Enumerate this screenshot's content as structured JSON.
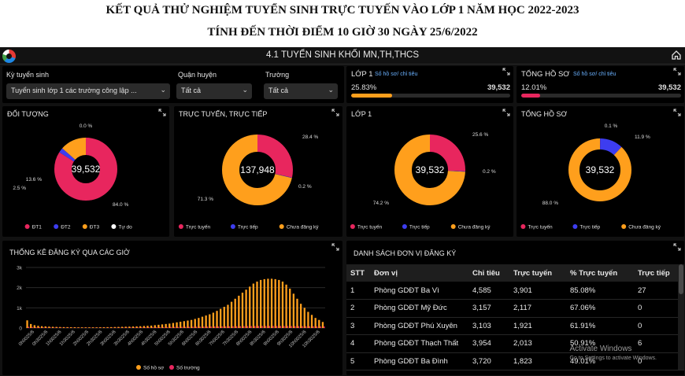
{
  "header": {
    "line1": "KẾT QUẢ THỬ NGHIỆM TUYỂN SINH TRỰC TUYẾN VÀO LỚP 1 NĂM HỌC 2022-2023",
    "line2": "TÍNH ĐẾN THỜI ĐIỂM 10 GIỜ 30 NGÀY 25/6/2022"
  },
  "app": {
    "title": "4.1 TUYỂN SINH KHỐI MN,TH,THCS"
  },
  "filters": {
    "ky_label": "Kỳ tuyển sinh",
    "ky_value": "Tuyển sinh lớp 1 các trường công lập ...",
    "quan_label": "Quận huyện",
    "quan_value": "Tất cả",
    "truong_label": "Trường",
    "truong_value": "Tất cả"
  },
  "kpi": {
    "lop1": {
      "title": "LỚP 1",
      "sub": "Số hồ sơ/ chỉ tiêu",
      "pct": "25.83%",
      "total": "39,532",
      "fill": 25.83
    },
    "tonghoso": {
      "title": "TỔNG HỒ SƠ",
      "sub": "Số hồ sơ/ chỉ tiêu",
      "pct": "12.01%",
      "bar_text": "12.01%",
      "total": "39,532",
      "fill": 12.01
    }
  },
  "colors": {
    "pink": "#e8265e",
    "orange": "#ff9f1c",
    "blue": "#3d3df0",
    "white": "#ffffff"
  },
  "donuts": [
    {
      "key": "doituong",
      "title": "ĐỐI TƯỢNG",
      "center": "39,532",
      "slices": [
        {
          "name": "ĐT1",
          "value": 84.0,
          "color": "#e8265e",
          "label": "84.0 %"
        },
        {
          "name": "ĐT2",
          "value": 2.5,
          "color": "#3d3df0",
          "label": "2.5 %"
        },
        {
          "name": "ĐT3",
          "value": 13.6,
          "color": "#ff9f1c",
          "label": "13.6 %"
        },
        {
          "name": "Tự do",
          "value": 0.0,
          "color": "#ffffff",
          "label": "0.0 %"
        }
      ],
      "legend": [
        "ĐT1",
        "ĐT2",
        "ĐT3",
        "Tự do"
      ]
    },
    {
      "key": "tructuyen",
      "title": "TRỰC TUYẾN, TRỰC TIẾP",
      "center": "137,948",
      "slices": [
        {
          "name": "Trực tuyến",
          "value": 28.4,
          "color": "#e8265e",
          "label": "28.4 %"
        },
        {
          "name": "Trực tiếp",
          "value": 0.2,
          "color": "#3d3df0",
          "label": "0.2 %"
        },
        {
          "name": "Chưa đăng ký",
          "value": 71.3,
          "color": "#ff9f1c",
          "label": "71.3 %"
        }
      ],
      "legend": [
        "Trực tuyến",
        "Trực tiếp",
        "Chưa đăng ký"
      ]
    },
    {
      "key": "lop1",
      "title": "LỚP 1",
      "center": "39,532",
      "slices": [
        {
          "name": "Trực tuyến",
          "value": 25.6,
          "color": "#e8265e",
          "label": "25.6 %"
        },
        {
          "name": "Trực tiếp",
          "value": 0.2,
          "color": "#3d3df0",
          "label": "0.2 %"
        },
        {
          "name": "Chưa đăng ký",
          "value": 74.2,
          "color": "#ff9f1c",
          "label": "74.2 %"
        }
      ],
      "legend": [
        "Trực tuyến",
        "Trực tiếp",
        "Chưa đăng ký"
      ]
    },
    {
      "key": "tonghoso",
      "title": "TỔNG HỒ SƠ",
      "center": "39,532",
      "slices": [
        {
          "name": "Trực tuyến",
          "value": 0.1,
          "color": "#e8265e",
          "label": "0.1 %"
        },
        {
          "name": "Trực tiếp",
          "value": 11.9,
          "color": "#3d3df0",
          "label": "11.9 %"
        },
        {
          "name": "Chưa đăng ký",
          "value": 88.0,
          "color": "#ff9f1c",
          "label": "88.0 %"
        }
      ],
      "legend": [
        "Trực tuyến",
        "Trực tiếp",
        "Chưa đăng ký"
      ]
    }
  ],
  "chart_data": {
    "type": "bar",
    "title": "THỐNG KÊ ĐĂNG KÝ QUA CÁC GIỜ",
    "ylim": [
      0,
      3000
    ],
    "yticks": [
      "3k",
      "2k",
      "1k",
      "0"
    ],
    "tick_labels": [
      "0h0025/6",
      "0h3025/6",
      "1h0025/6",
      "1h3025/6",
      "2h0025/6",
      "2h3025/6",
      "3h0025/6",
      "3h3025/6",
      "4h0025/6",
      "4h3025/6",
      "5h0025/6",
      "5h3025/6",
      "6h0025/6",
      "6h3025/6",
      "7h0025/6",
      "7h3025/6",
      "8h0025/6",
      "8h3025/6",
      "9h0025/6",
      "9h3025/6",
      "10h0025/6",
      "10h3025/6"
    ],
    "series": [
      {
        "name": "Số hồ sơ",
        "color": "#ff9f1c",
        "values": [
          380,
          200,
          140,
          110,
          90,
          80,
          70,
          60,
          55,
          50,
          45,
          45,
          40,
          40,
          35,
          35,
          35,
          35,
          35,
          35,
          40,
          40,
          45,
          45,
          50,
          55,
          60,
          65,
          70,
          75,
          80,
          90,
          100,
          110,
          120,
          140,
          160,
          180,
          200,
          220,
          250,
          280,
          310,
          340,
          370,
          400,
          450,
          500,
          560,
          620,
          680,
          760,
          850,
          950,
          1050,
          1150,
          1300,
          1450,
          1600,
          1750,
          1900,
          2050,
          2200,
          2300,
          2380,
          2420,
          2440,
          2440,
          2420,
          2380,
          2300,
          2150,
          1950,
          1700,
          1450,
          1200,
          1000,
          800,
          650,
          500,
          400,
          300
        ]
      },
      {
        "name": "Số trường",
        "color": "#e8265e",
        "values": [
          60,
          50,
          45,
          40,
          35,
          30,
          28,
          26,
          24,
          22,
          20,
          20,
          18,
          18,
          16,
          16,
          16,
          16,
          16,
          16,
          18,
          18,
          20,
          20,
          22,
          24,
          26,
          28,
          30,
          32,
          34,
          36,
          38,
          40,
          42,
          44,
          46,
          48,
          50,
          52,
          54,
          56,
          58,
          60,
          62,
          64,
          66,
          68,
          70,
          72,
          74,
          76,
          78,
          80,
          82,
          84,
          86,
          88,
          90,
          92,
          94,
          96,
          98,
          100,
          100,
          100,
          100,
          100,
          100,
          100,
          100,
          98,
          96,
          94,
          92,
          90,
          88,
          86,
          84,
          82,
          80,
          78
        ]
      }
    ],
    "legend": [
      "Số hồ sơ",
      "Số trường"
    ]
  },
  "table": {
    "title": "DANH SÁCH ĐƠN VỊ ĐĂNG KÝ",
    "headers": [
      "STT",
      "Đơn vị",
      "Chỉ tiêu",
      "Trực tuyến",
      "% Trực tuyến",
      "Trực tiếp"
    ],
    "rows": [
      [
        "1",
        "Phòng GDĐT Ba Vì",
        "4,585",
        "3,901",
        "85.08%",
        "27"
      ],
      [
        "2",
        "Phòng GDĐT Mỹ Đức",
        "3,157",
        "2,117",
        "67.06%",
        "0"
      ],
      [
        "3",
        "Phòng GDĐT Phú Xuyên",
        "3,103",
        "1,921",
        "61.91%",
        "0"
      ],
      [
        "4",
        "Phòng GDĐT Thạch Thất",
        "3,954",
        "2,013",
        "50.91%",
        "6"
      ],
      [
        "5",
        "Phòng GDĐT Ba Đình",
        "3,720",
        "1,823",
        "49.01%",
        "0"
      ]
    ]
  },
  "watermark": {
    "line1": "Activate Windows",
    "line2": "Go to Settings to activate Windows."
  }
}
